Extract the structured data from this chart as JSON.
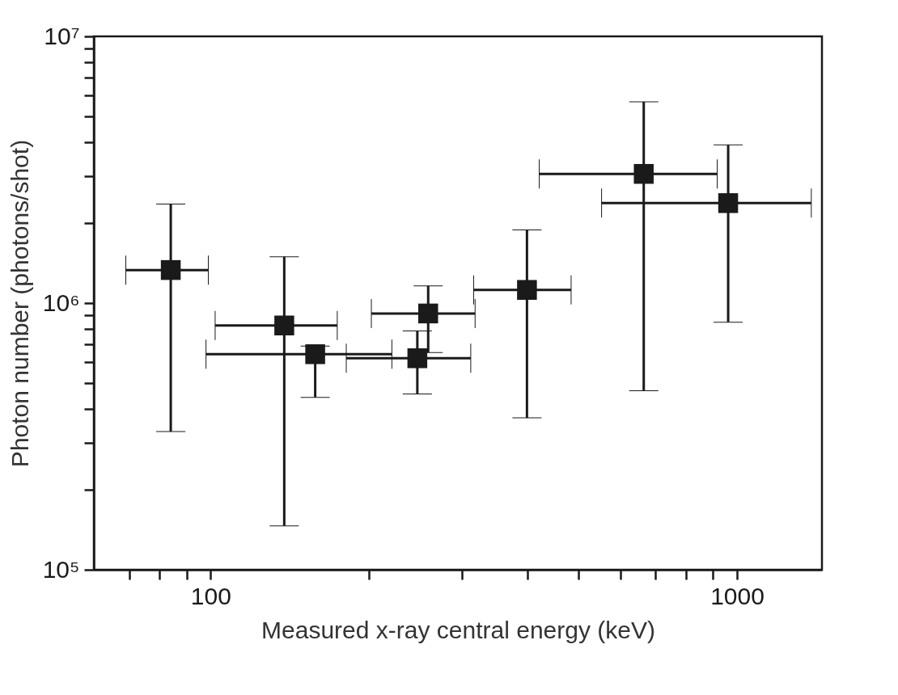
{
  "chart_data": {
    "type": "scatter",
    "xlabel": "Measured x-ray central energy (keV)",
    "ylabel": "Photon number (photons/shot)",
    "x": [
      84,
      138,
      158,
      247,
      259,
      399,
      665,
      962
    ],
    "series": [
      {
        "color": "#1a1a1a",
        "values": [
          1330000,
          824000,
          643000,
          621000,
          914000,
          1120000,
          3050000,
          2370000
        ],
        "errors": [
          [
            330000,
            2350000
          ],
          [
            146000,
            1490000
          ],
          [
            443000,
            690000
          ],
          [
            456000,
            786000
          ],
          [
            652000,
            1160000
          ],
          [
            371000,
            1880000
          ],
          [
            469000,
            5680000
          ],
          [
            848000,
            3920000
          ]
        ],
        "xerrors": [
          [
            69,
            99
          ],
          [
            102,
            174
          ],
          [
            98,
            221
          ],
          [
            181,
            312
          ],
          [
            202,
            318
          ],
          [
            316,
            484
          ],
          [
            421,
            917
          ],
          [
            553,
            1384
          ]
        ]
      }
    ],
    "log": "xy",
    "marker": "square",
    "grid": false,
    "xlim": [
      60,
      1450
    ],
    "ylim": [
      100000,
      10000000
    ],
    "xticks": [
      {
        "value": 70,
        "label": null
      },
      {
        "value": 80,
        "label": null
      },
      {
        "value": 90,
        "label": null
      },
      100,
      {
        "value": 200,
        "label": null
      },
      {
        "value": 300,
        "label": null
      },
      {
        "value": 400,
        "label": null
      },
      {
        "value": 500,
        "label": null
      },
      {
        "value": 600,
        "label": null
      },
      {
        "value": 700,
        "label": null
      },
      {
        "value": 800,
        "label": null
      },
      {
        "value": 900,
        "label": null
      },
      1000
    ],
    "yticks": [
      {
        "value": 100000,
        "label": "10⁵"
      },
      {
        "value": 200000,
        "label": null
      },
      {
        "value": 300000,
        "label": null
      },
      {
        "value": 400000,
        "label": null
      },
      {
        "value": 500000,
        "label": null
      },
      {
        "value": 600000,
        "label": null
      },
      {
        "value": 700000,
        "label": null
      },
      {
        "value": 800000,
        "label": null
      },
      {
        "value": 900000,
        "label": null
      },
      {
        "value": 1000000,
        "label": "10⁶"
      },
      {
        "value": 2000000,
        "label": null
      },
      {
        "value": 3000000,
        "label": null
      },
      {
        "value": 4000000,
        "label": null
      },
      {
        "value": 5000000,
        "label": null
      },
      {
        "value": 6000000,
        "label": null
      },
      {
        "value": 7000000,
        "label": null
      },
      {
        "value": 8000000,
        "label": null
      },
      {
        "value": 9000000,
        "label": null
      },
      {
        "value": 10000000,
        "label": "10⁷"
      }
    ]
  }
}
